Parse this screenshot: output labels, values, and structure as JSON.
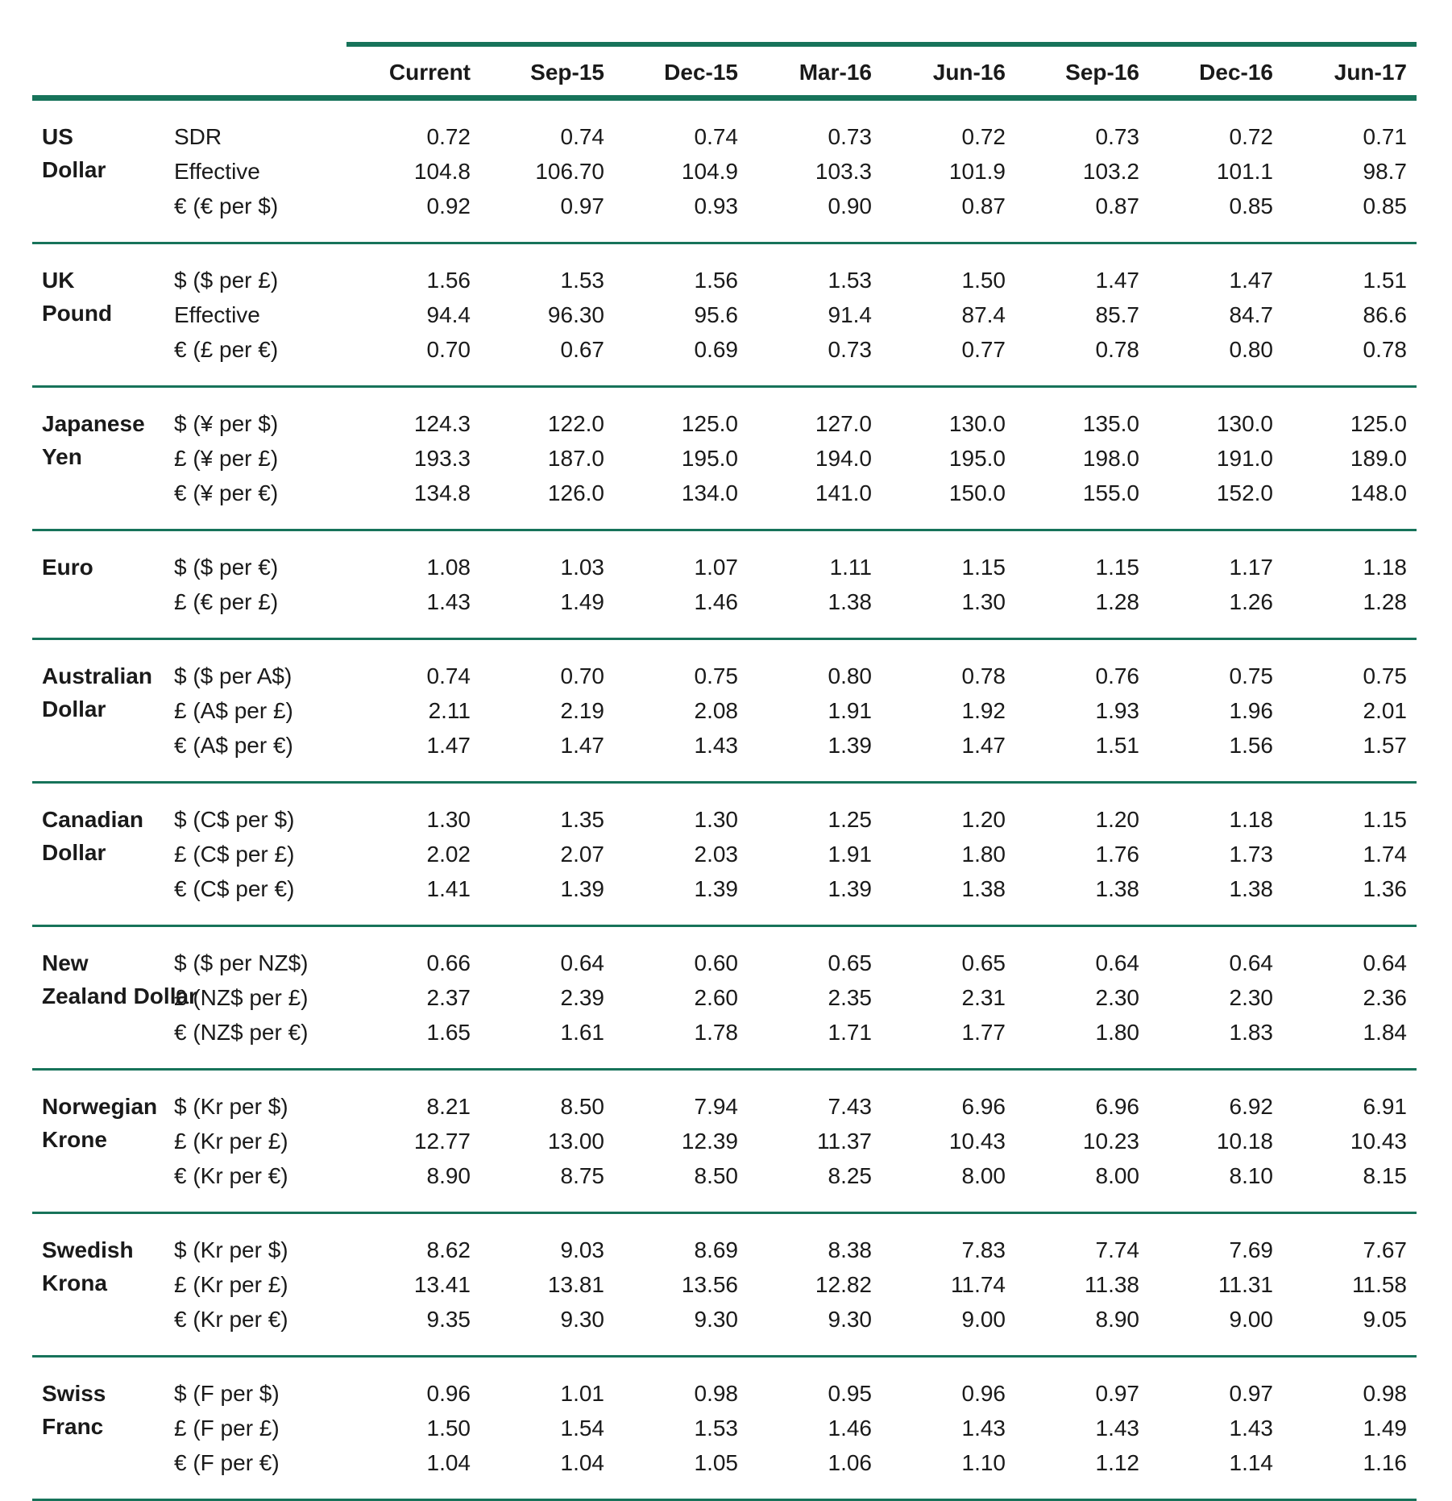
{
  "accent_color": "#17735A",
  "table": {
    "columns": [
      "Current",
      "Sep-15",
      "Dec-15",
      "Mar-16",
      "Jun-16",
      "Sep-16",
      "Dec-16",
      "Jun-17"
    ],
    "groups": [
      {
        "name": [
          "US",
          "Dollar"
        ],
        "rows": [
          {
            "label": "SDR",
            "values": [
              "0.72",
              "0.74",
              "0.74",
              "0.73",
              "0.72",
              "0.73",
              "0.72",
              "0.71"
            ]
          },
          {
            "label": "Effective",
            "values": [
              "104.8",
              "106.70",
              "104.9",
              "103.3",
              "101.9",
              "103.2",
              "101.1",
              "98.7"
            ]
          },
          {
            "label": "€ (€ per $)",
            "values": [
              "0.92",
              "0.97",
              "0.93",
              "0.90",
              "0.87",
              "0.87",
              "0.85",
              "0.85"
            ]
          }
        ]
      },
      {
        "name": [
          "UK",
          "Pound"
        ],
        "rows": [
          {
            "label": "$ ($ per £)",
            "values": [
              "1.56",
              "1.53",
              "1.56",
              "1.53",
              "1.50",
              "1.47",
              "1.47",
              "1.51"
            ]
          },
          {
            "label": "Effective",
            "values": [
              "94.4",
              "96.30",
              "95.6",
              "91.4",
              "87.4",
              "85.7",
              "84.7",
              "86.6"
            ]
          },
          {
            "label": "€ (£ per €)",
            "values": [
              "0.70",
              "0.67",
              "0.69",
              "0.73",
              "0.77",
              "0.78",
              "0.80",
              "0.78"
            ]
          }
        ]
      },
      {
        "name": [
          "Japanese",
          "Yen"
        ],
        "rows": [
          {
            "label": "$ (¥ per $)",
            "values": [
              "124.3",
              "122.0",
              "125.0",
              "127.0",
              "130.0",
              "135.0",
              "130.0",
              "125.0"
            ]
          },
          {
            "label": "£ (¥ per £)",
            "values": [
              "193.3",
              "187.0",
              "195.0",
              "194.0",
              "195.0",
              "198.0",
              "191.0",
              "189.0"
            ]
          },
          {
            "label": "€ (¥ per €)",
            "values": [
              "134.8",
              "126.0",
              "134.0",
              "141.0",
              "150.0",
              "155.0",
              "152.0",
              "148.0"
            ]
          }
        ]
      },
      {
        "name": [
          "Euro"
        ],
        "rows": [
          {
            "label": "$ ($ per €)",
            "values": [
              "1.08",
              "1.03",
              "1.07",
              "1.11",
              "1.15",
              "1.15",
              "1.17",
              "1.18"
            ]
          },
          {
            "label": "£ (€ per £)",
            "values": [
              "1.43",
              "1.49",
              "1.46",
              "1.38",
              "1.30",
              "1.28",
              "1.26",
              "1.28"
            ]
          }
        ]
      },
      {
        "name": [
          "Australian",
          "Dollar"
        ],
        "rows": [
          {
            "label": "$ ($ per A$)",
            "values": [
              "0.74",
              "0.70",
              "0.75",
              "0.80",
              "0.78",
              "0.76",
              "0.75",
              "0.75"
            ]
          },
          {
            "label": "£ (A$ per £)",
            "values": [
              "2.11",
              "2.19",
              "2.08",
              "1.91",
              "1.92",
              "1.93",
              "1.96",
              "2.01"
            ]
          },
          {
            "label": "€ (A$ per €)",
            "values": [
              "1.47",
              "1.47",
              "1.43",
              "1.39",
              "1.47",
              "1.51",
              "1.56",
              "1.57"
            ]
          }
        ]
      },
      {
        "name": [
          "Canadian",
          "Dollar"
        ],
        "rows": [
          {
            "label": "$ (C$ per $)",
            "values": [
              "1.30",
              "1.35",
              "1.30",
              "1.25",
              "1.20",
              "1.20",
              "1.18",
              "1.15"
            ]
          },
          {
            "label": "£ (C$ per £)",
            "values": [
              "2.02",
              "2.07",
              "2.03",
              "1.91",
              "1.80",
              "1.76",
              "1.73",
              "1.74"
            ]
          },
          {
            "label": "€ (C$ per €)",
            "values": [
              "1.41",
              "1.39",
              "1.39",
              "1.39",
              "1.38",
              "1.38",
              "1.38",
              "1.36"
            ]
          }
        ]
      },
      {
        "name": [
          "New",
          "Zealand Dollar"
        ],
        "rows": [
          {
            "label": "$ ($ per NZ$)",
            "values": [
              "0.66",
              "0.64",
              "0.60",
              "0.65",
              "0.65",
              "0.64",
              "0.64",
              "0.64"
            ]
          },
          {
            "label": "£ (NZ$ per £)",
            "values": [
              "2.37",
              "2.39",
              "2.60",
              "2.35",
              "2.31",
              "2.30",
              "2.30",
              "2.36"
            ]
          },
          {
            "label": "€ (NZ$ per €)",
            "values": [
              "1.65",
              "1.61",
              "1.78",
              "1.71",
              "1.77",
              "1.80",
              "1.83",
              "1.84"
            ]
          }
        ]
      },
      {
        "name": [
          "Norwegian",
          "Krone"
        ],
        "rows": [
          {
            "label": "$ (Kr per $)",
            "values": [
              "8.21",
              "8.50",
              "7.94",
              "7.43",
              "6.96",
              "6.96",
              "6.92",
              "6.91"
            ]
          },
          {
            "label": "£ (Kr per £)",
            "values": [
              "12.77",
              "13.00",
              "12.39",
              "11.37",
              "10.43",
              "10.23",
              "10.18",
              "10.43"
            ]
          },
          {
            "label": "€ (Kr per €)",
            "values": [
              "8.90",
              "8.75",
              "8.50",
              "8.25",
              "8.00",
              "8.00",
              "8.10",
              "8.15"
            ]
          }
        ]
      },
      {
        "name": [
          "Swedish",
          "Krona"
        ],
        "rows": [
          {
            "label": "$ (Kr per $)",
            "values": [
              "8.62",
              "9.03",
              "8.69",
              "8.38",
              "7.83",
              "7.74",
              "7.69",
              "7.67"
            ]
          },
          {
            "label": "£ (Kr per £)",
            "values": [
              "13.41",
              "13.81",
              "13.56",
              "12.82",
              "11.74",
              "11.38",
              "11.31",
              "11.58"
            ]
          },
          {
            "label": "€ (Kr per €)",
            "values": [
              "9.35",
              "9.30",
              "9.30",
              "9.30",
              "9.00",
              "8.90",
              "9.00",
              "9.05"
            ]
          }
        ]
      },
      {
        "name": [
          "Swiss",
          "Franc"
        ],
        "rows": [
          {
            "label": "$ (F per $)",
            "values": [
              "0.96",
              "1.01",
              "0.98",
              "0.95",
              "0.96",
              "0.97",
              "0.97",
              "0.98"
            ]
          },
          {
            "label": "£ (F per £)",
            "values": [
              "1.50",
              "1.54",
              "1.53",
              "1.46",
              "1.43",
              "1.43",
              "1.43",
              "1.49"
            ]
          },
          {
            "label": "€ (F per €)",
            "values": [
              "1.04",
              "1.04",
              "1.05",
              "1.06",
              "1.10",
              "1.12",
              "1.14",
              "1.16"
            ]
          }
        ]
      }
    ]
  }
}
